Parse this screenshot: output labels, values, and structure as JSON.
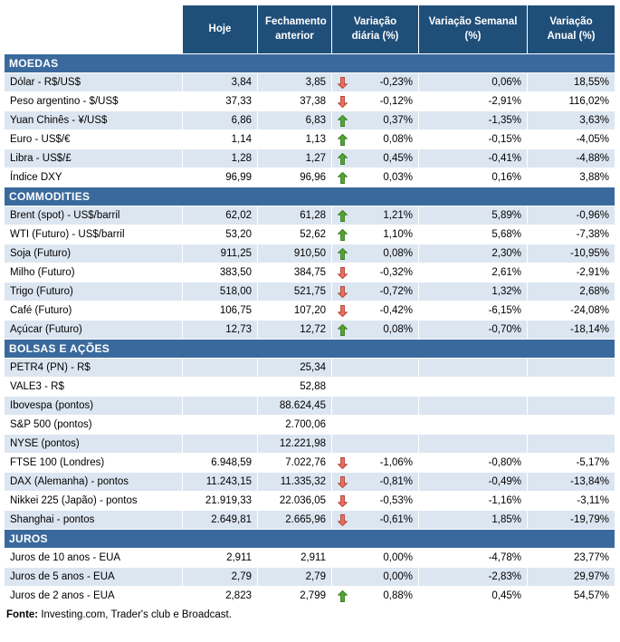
{
  "table": {
    "columns": [
      "Hoje",
      "Fechamento anterior",
      "Variação diária (%)",
      "Variação Semanal (%)",
      "Variação Anual (%)"
    ],
    "sections": [
      {
        "title": "MOEDAS",
        "rows": [
          {
            "label": "Dólar - R$/US$",
            "hoje": "3,84",
            "prev": "3,85",
            "arrow": "down",
            "daily": "-0,23%",
            "weekly": "0,06%",
            "yearly": "18,55%",
            "tint": true
          },
          {
            "label": "Peso argentino - $/US$",
            "hoje": "37,33",
            "prev": "37,38",
            "arrow": "down",
            "daily": "-0,12%",
            "weekly": "-2,91%",
            "yearly": "116,02%",
            "tint": false
          },
          {
            "label": "Yuan Chinês - ¥/US$",
            "hoje": "6,86",
            "prev": "6,83",
            "arrow": "up",
            "daily": "0,37%",
            "weekly": "-1,35%",
            "yearly": "3,63%",
            "tint": true
          },
          {
            "label": "Euro - US$/€",
            "hoje": "1,14",
            "prev": "1,13",
            "arrow": "up",
            "daily": "0,08%",
            "weekly": "-0,15%",
            "yearly": "-4,05%",
            "tint": false
          },
          {
            "label": "Libra - US$/£",
            "hoje": "1,28",
            "prev": "1,27",
            "arrow": "up",
            "daily": "0,45%",
            "weekly": "-0,41%",
            "yearly": "-4,88%",
            "tint": true
          },
          {
            "label": "Índice DXY",
            "hoje": "96,99",
            "prev": "96,96",
            "arrow": "up",
            "daily": "0,03%",
            "weekly": "0,16%",
            "yearly": "3,88%",
            "tint": false
          }
        ]
      },
      {
        "title": "COMMODITIES",
        "rows": [
          {
            "label": "Brent (spot) - US$/barril",
            "hoje": "62,02",
            "prev": "61,28",
            "arrow": "up",
            "daily": "1,21%",
            "weekly": "5,89%",
            "yearly": "-0,96%",
            "tint": true
          },
          {
            "label": "WTI (Futuro) - US$/barril",
            "hoje": "53,20",
            "prev": "52,62",
            "arrow": "up",
            "daily": "1,10%",
            "weekly": "5,68%",
            "yearly": "-7,38%",
            "tint": false
          },
          {
            "label": "Soja (Futuro)",
            "hoje": "911,25",
            "prev": "910,50",
            "arrow": "up",
            "daily": "0,08%",
            "weekly": "2,30%",
            "yearly": "-10,95%",
            "tint": true
          },
          {
            "label": "Milho (Futuro)",
            "hoje": "383,50",
            "prev": "384,75",
            "arrow": "down",
            "daily": "-0,32%",
            "weekly": "2,61%",
            "yearly": "-2,91%",
            "tint": false
          },
          {
            "label": "Trigo (Futuro)",
            "hoje": "518,00",
            "prev": "521,75",
            "arrow": "down",
            "daily": "-0,72%",
            "weekly": "1,32%",
            "yearly": "2,68%",
            "tint": true
          },
          {
            "label": "Café (Futuro)",
            "hoje": "106,75",
            "prev": "107,20",
            "arrow": "down",
            "daily": "-0,42%",
            "weekly": "-6,15%",
            "yearly": "-24,08%",
            "tint": false
          },
          {
            "label": "Açúcar (Futuro)",
            "hoje": "12,73",
            "prev": "12,72",
            "arrow": "up",
            "daily": "0,08%",
            "weekly": "-0,70%",
            "yearly": "-18,14%",
            "tint": true
          }
        ]
      },
      {
        "title": "BOLSAS E AÇÕES",
        "rows": [
          {
            "label": "PETR4 (PN) - R$",
            "hoje": "",
            "prev": "25,34",
            "arrow": "none",
            "daily": "",
            "weekly": "",
            "yearly": "",
            "tint": true
          },
          {
            "label": "VALE3 - R$",
            "hoje": "",
            "prev": "52,88",
            "arrow": "none",
            "daily": "",
            "weekly": "",
            "yearly": "",
            "tint": false
          },
          {
            "label": "Ibovespa (pontos)",
            "hoje": "",
            "prev": "88.624,45",
            "arrow": "none",
            "daily": "",
            "weekly": "",
            "yearly": "",
            "tint": true
          },
          {
            "label": "S&P 500 (pontos)",
            "hoje": "",
            "prev": "2.700,06",
            "arrow": "none",
            "daily": "",
            "weekly": "",
            "yearly": "",
            "tint": false
          },
          {
            "label": "NYSE (pontos)",
            "hoje": "",
            "prev": "12.221,98",
            "arrow": "none",
            "daily": "",
            "weekly": "",
            "yearly": "",
            "tint": true
          },
          {
            "label": "FTSE 100 (Londres)",
            "hoje": "6.948,59",
            "prev": "7.022,76",
            "arrow": "down",
            "daily": "-1,06%",
            "weekly": "-0,80%",
            "yearly": "-5,17%",
            "tint": false
          },
          {
            "label": "DAX (Alemanha) - pontos",
            "hoje": "11.243,15",
            "prev": "11.335,32",
            "arrow": "down",
            "daily": "-0,81%",
            "weekly": "-0,49%",
            "yearly": "-13,84%",
            "tint": true
          },
          {
            "label": "Nikkei 225 (Japão) - pontos",
            "hoje": "21.919,33",
            "prev": "22.036,05",
            "arrow": "down",
            "daily": "-0,53%",
            "weekly": "-1,16%",
            "yearly": "-3,11%",
            "tint": false
          },
          {
            "label": "Shanghai - pontos",
            "hoje": "2.649,81",
            "prev": "2.665,96",
            "arrow": "down",
            "daily": "-0,61%",
            "weekly": "1,85%",
            "yearly": "-19,79%",
            "tint": true
          }
        ]
      },
      {
        "title": "JUROS",
        "rows": [
          {
            "label": "Juros de 10 anos - EUA",
            "hoje": "2,911",
            "prev": "2,911",
            "arrow": "none",
            "daily": "0,00%",
            "weekly": "-4,78%",
            "yearly": "23,77%",
            "tint": false
          },
          {
            "label": "Juros de 5 anos - EUA",
            "hoje": "2,79",
            "prev": "2,79",
            "arrow": "none",
            "daily": "0,00%",
            "weekly": "-2,83%",
            "yearly": "29,97%",
            "tint": true
          },
          {
            "label": "Juros de 2 anos - EUA",
            "hoje": "2,823",
            "prev": "2,799",
            "arrow": "up",
            "daily": "0,88%",
            "weekly": "0,45%",
            "yearly": "54,57%",
            "tint": false
          }
        ]
      }
    ]
  },
  "footer": {
    "label": "Fonte:",
    "text": " Investing.com, Trader's club e Broadcast."
  },
  "colors": {
    "header_bg": "#1F4E79",
    "section_bg": "#3A6A9D",
    "row_tint": "#DCE6F1",
    "up_arrow": "#4EA72E",
    "up_arrow_border": "#37761F",
    "down_arrow": "#E8705F",
    "down_arrow_border": "#B03A2E"
  }
}
